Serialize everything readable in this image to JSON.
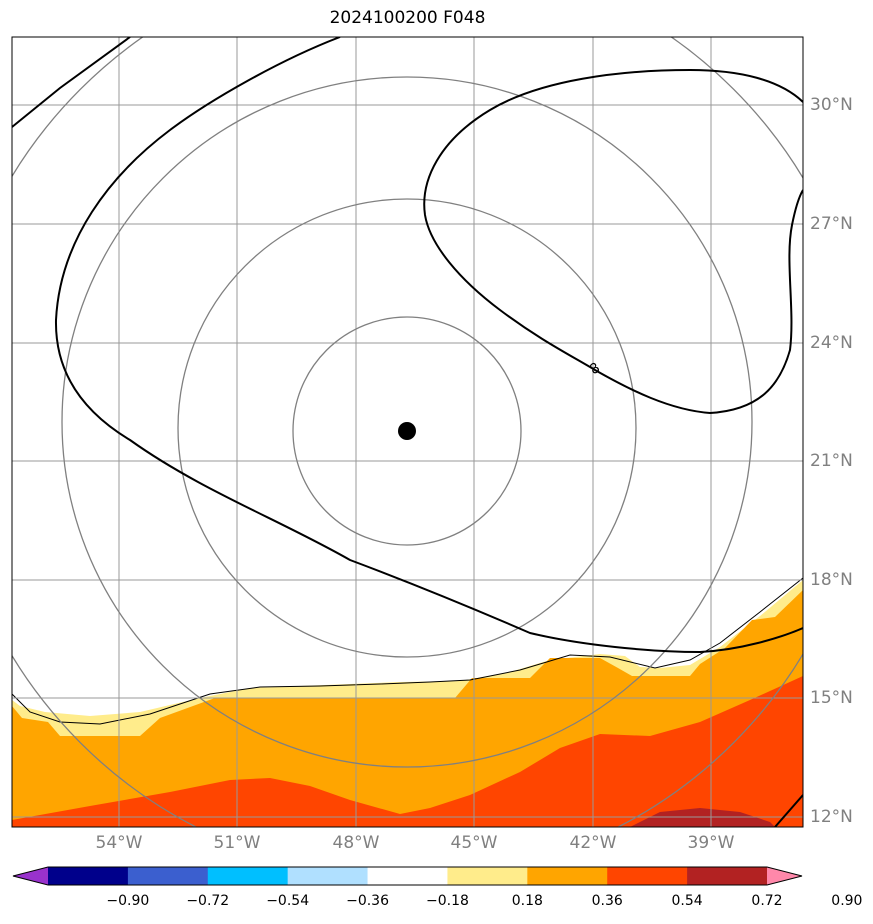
{
  "title": "2024100200 F048",
  "longitude_labels": [
    "54°W",
    "51°W",
    "48°W",
    "45°W",
    "42°W",
    "39°W"
  ],
  "latitude_labels": [
    "30°N",
    "27°N",
    "24°N",
    "21°N",
    "18°N",
    "15°N",
    "12°N"
  ],
  "contour_label": "8",
  "center_marker": {
    "lon": "46.3°W",
    "lat": "21.8°N"
  },
  "colorbar": {
    "tick_labels": [
      "−0.90",
      "−0.72",
      "−0.54",
      "−0.36",
      "−0.18",
      "0.18",
      "0.36",
      "0.54",
      "0.72",
      "0.90"
    ],
    "colors": [
      "#9932cc",
      "#00008b",
      "#3b5fcf",
      "#00bfff",
      "#b0e0ff",
      "#ffffff",
      "#ffec8b",
      "#ffa500",
      "#ff4500",
      "#b22222",
      "#ff88aa"
    ]
  },
  "fill_colors": {
    "light_yellow": "#ffec8b",
    "orange": "#ffa500",
    "red_orange": "#ff4500",
    "dark_red": "#b22222"
  }
}
